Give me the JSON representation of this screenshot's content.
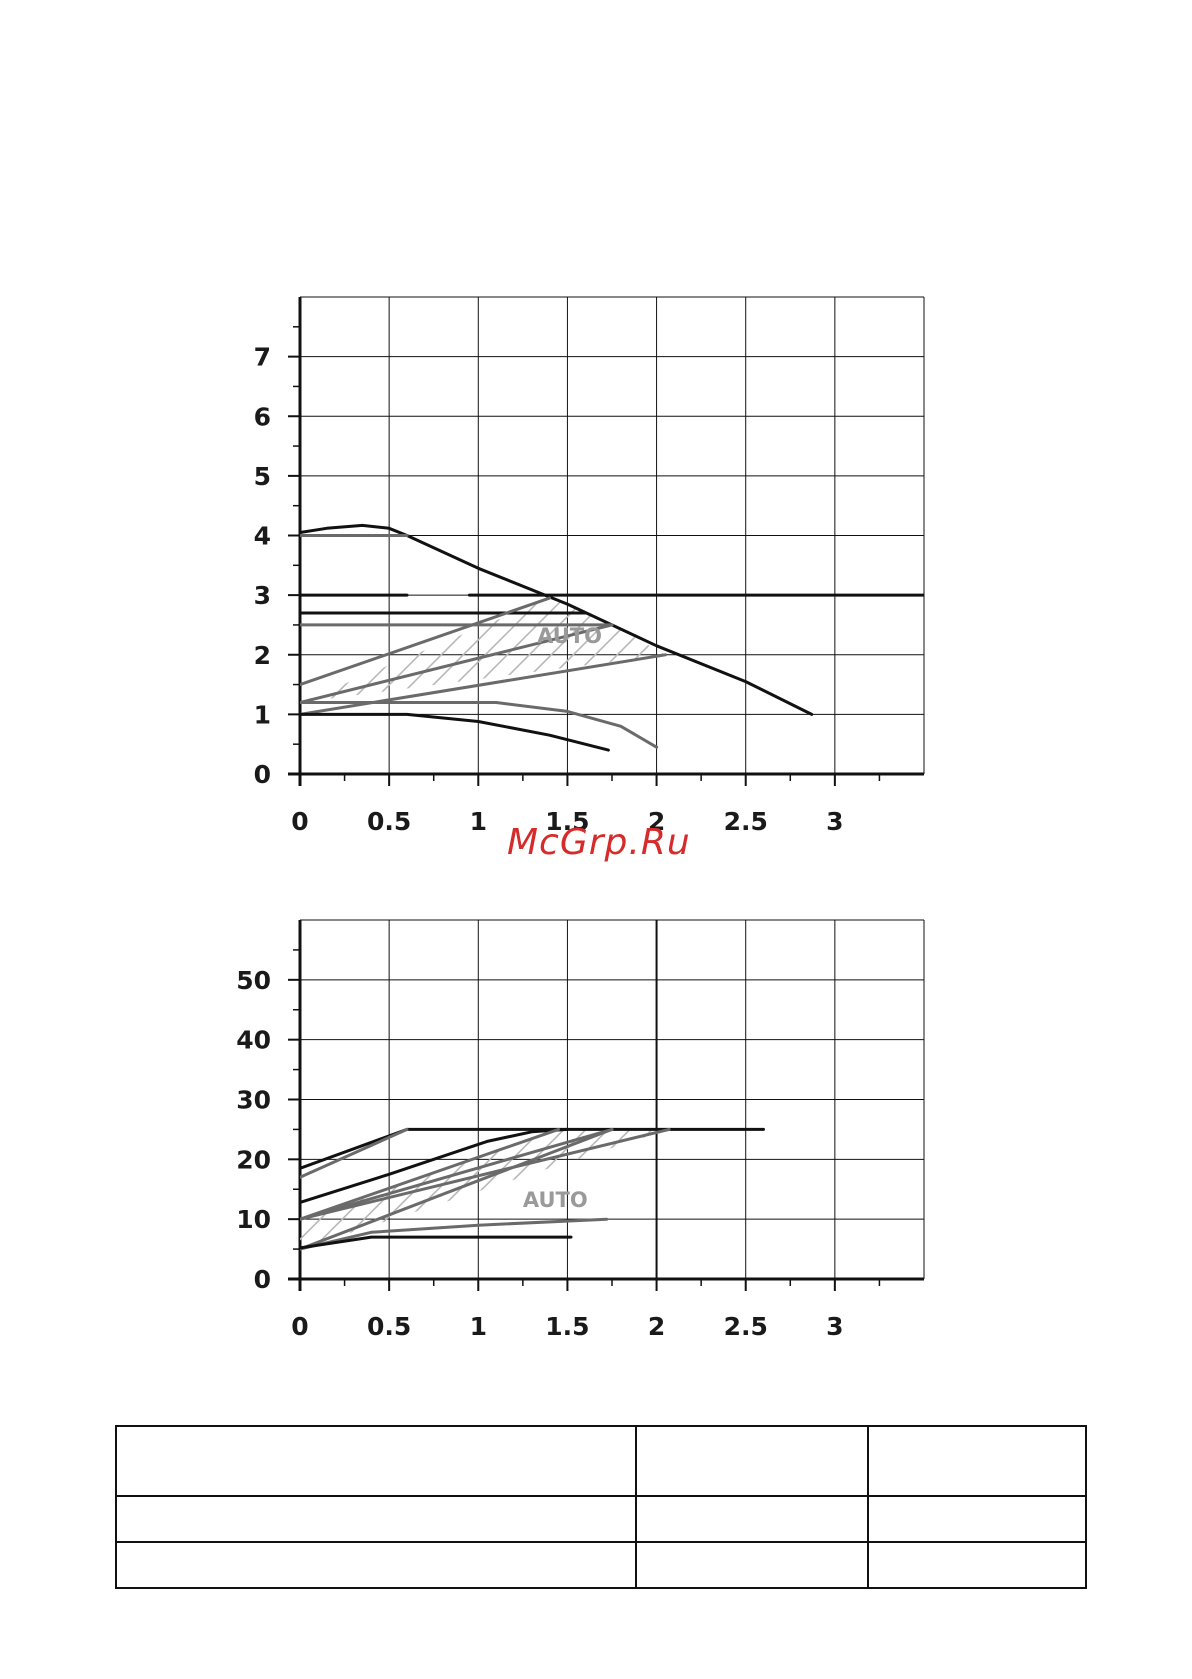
{
  "watermark": {
    "text": "McGrp.Ru",
    "color": "#d62b2b"
  },
  "colors": {
    "dark": "#111111",
    "medium": "#6a6a6a",
    "hatch": "#b8b8b8",
    "grid": "#111111",
    "auto_label": "#9a9a9a"
  },
  "chart_data": [
    {
      "type": "line",
      "title": "",
      "xlabel": "",
      "ylabel": "",
      "xlim": [
        0,
        3.5
      ],
      "ylim": [
        0,
        8
      ],
      "xticks": [
        "0",
        "0.5",
        "1",
        "1.5",
        "2",
        "2.5",
        "3"
      ],
      "yticks": [
        "0",
        "1",
        "2",
        "3",
        "4",
        "5",
        "6",
        "7"
      ],
      "grid": true,
      "annotation": "AUTO",
      "annotation_pos": [
        1.33,
        2.2
      ],
      "series": [
        {
          "color": "dark",
          "points": [
            [
              0,
              4.05
            ],
            [
              0.15,
              4.12
            ],
            [
              0.35,
              4.17
            ],
            [
              0.5,
              4.12
            ],
            [
              0.6,
              4.0
            ],
            [
              1.0,
              3.45
            ],
            [
              1.5,
              2.85
            ],
            [
              2.0,
              2.15
            ],
            [
              2.5,
              1.55
            ],
            [
              2.87,
              1.0
            ]
          ]
        },
        {
          "color": "medium",
          "points": [
            [
              0,
              4.0
            ],
            [
              0.6,
              4.0
            ]
          ]
        },
        {
          "color": "dark",
          "points": [
            [
              0,
              3.0
            ],
            [
              0.6,
              3.0
            ]
          ]
        },
        {
          "color": "dark",
          "points": [
            [
              0.95,
              3.0
            ],
            [
              3.5,
              3.0
            ]
          ]
        },
        {
          "color": "dark",
          "points": [
            [
              0,
              2.7
            ],
            [
              1.6,
              2.7
            ]
          ]
        },
        {
          "color": "medium",
          "points": [
            [
              0,
              2.5
            ],
            [
              1.75,
              2.5
            ]
          ]
        },
        {
          "color": "medium",
          "points": [
            [
              0,
              1.5
            ],
            [
              1.4,
              2.95
            ]
          ]
        },
        {
          "color": "medium",
          "points": [
            [
              0,
              1.2
            ],
            [
              1.75,
              2.5
            ]
          ]
        },
        {
          "color": "medium",
          "points": [
            [
              0,
              1.0
            ],
            [
              2.05,
              2.0
            ]
          ]
        },
        {
          "color": "medium",
          "points": [
            [
              0,
              1.2
            ],
            [
              1.1,
              1.2
            ],
            [
              1.5,
              1.05
            ],
            [
              1.8,
              0.8
            ],
            [
              2.0,
              0.45
            ]
          ]
        },
        {
          "color": "dark",
          "points": [
            [
              0,
              1.0
            ],
            [
              0.6,
              1.0
            ],
            [
              1.0,
              0.88
            ],
            [
              1.4,
              0.65
            ],
            [
              1.73,
              0.4
            ]
          ]
        }
      ],
      "hatch_region": [
        [
          0,
          1.2
        ],
        [
          1.4,
          2.95
        ],
        [
          1.75,
          2.5
        ],
        [
          2.05,
          2.0
        ],
        [
          0,
          1.2
        ]
      ]
    },
    {
      "type": "line",
      "title": "",
      "xlabel": "",
      "ylabel": "",
      "xlim": [
        0,
        3.5
      ],
      "ylim": [
        0,
        60
      ],
      "xticks": [
        "0",
        "0.5",
        "1",
        "1.5",
        "2",
        "2.5",
        "3"
      ],
      "yticks": [
        "0",
        "10",
        "20",
        "30",
        "40",
        "50"
      ],
      "grid": true,
      "annotation": "AUTO",
      "annotation_pos": [
        1.25,
        12.0
      ],
      "series": [
        {
          "color": "dark",
          "points": [
            [
              0,
              18.5
            ],
            [
              0.6,
              25.0
            ],
            [
              2.6,
              25.0
            ]
          ]
        },
        {
          "color": "medium",
          "points": [
            [
              0,
              17.0
            ],
            [
              0.6,
              25.0
            ]
          ]
        },
        {
          "color": "dark",
          "points": [
            [
              0,
              12.8
            ],
            [
              0.5,
              17.5
            ],
            [
              1.05,
              23.0
            ],
            [
              1.3,
              24.6
            ],
            [
              1.5,
              25.0
            ]
          ]
        },
        {
          "color": "medium",
          "points": [
            [
              0,
              10.0
            ],
            [
              1.45,
              25.0
            ]
          ]
        },
        {
          "color": "medium",
          "points": [
            [
              0,
              10.0
            ],
            [
              1.75,
              25.0
            ]
          ]
        },
        {
          "color": "medium",
          "points": [
            [
              0,
              10.0
            ],
            [
              2.07,
              25.0
            ]
          ]
        },
        {
          "color": "medium",
          "points": [
            [
              0,
              5.0
            ],
            [
              1.75,
              25.0
            ]
          ]
        },
        {
          "color": "medium",
          "points": [
            [
              0,
              5.0
            ],
            [
              0.4,
              7.8
            ],
            [
              1.0,
              9.0
            ],
            [
              1.72,
              10.0
            ]
          ]
        },
        {
          "color": "dark",
          "points": [
            [
              0,
              5.2
            ],
            [
              0.4,
              7.0
            ],
            [
              1.52,
              7.0
            ]
          ]
        }
      ],
      "hatch_region": [
        [
          0,
          5.0
        ],
        [
          0,
          10.0
        ],
        [
          1.45,
          25.0
        ],
        [
          2.07,
          25.0
        ],
        [
          0,
          5.0
        ]
      ]
    }
  ]
}
